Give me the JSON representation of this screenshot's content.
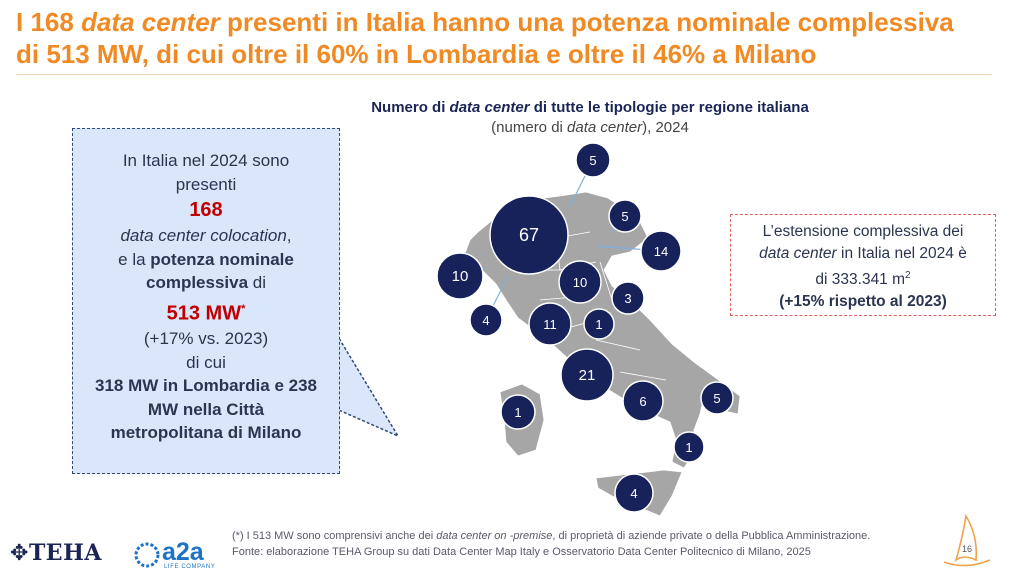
{
  "slide": {
    "title_line1_a": "I 168 ",
    "title_line1_em": "data center",
    "title_line1_b": " presenti in Italia hanno una potenza nominale complessiva",
    "title_line2": "di 513 MW, di cui oltre il 60% in Lombardia e oltre il 46% a Milano",
    "page_number": "16"
  },
  "callout": {
    "line1": "In Italia nel 2024 sono presenti",
    "count": "168",
    "line3": "data center colocation",
    "line3_suffix": ",",
    "line4_a": "e la ",
    "line4_b": "potenza nominale complessiva",
    "line4_c": " di",
    "power": "513 MW",
    "power_mark": "*",
    "growth": "(+17% vs. 2023)",
    "di_cui": "di cui",
    "detail": "318 MW in Lombardia e 238 MW nella Città metropolitana di Milano"
  },
  "map": {
    "title_a": "Numero di ",
    "title_em": "data center",
    "title_b": " di tutte le tipologie per regione italiana",
    "subtitle_a": "(numero di ",
    "subtitle_em": "data center",
    "subtitle_b": "), 2024",
    "land_color": "#a6a6a6",
    "bubble_color": "#17215a",
    "regions": [
      {
        "label": "5"
      },
      {
        "label": "67"
      },
      {
        "label": "5"
      },
      {
        "label": "14"
      },
      {
        "label": "10"
      },
      {
        "label": "10"
      },
      {
        "label": "3"
      },
      {
        "label": "4"
      },
      {
        "label": "11"
      },
      {
        "label": "1"
      },
      {
        "label": "21"
      },
      {
        "label": "6"
      },
      {
        "label": "5"
      },
      {
        "label": "1"
      },
      {
        "label": "1"
      },
      {
        "label": "4"
      }
    ]
  },
  "note": {
    "line1": "L’estensione complessiva dei",
    "line2_em": "data center",
    "line2_b": " in Italia nel 2024 è",
    "line3_a": "di 333.341 m",
    "line3_sup": "2",
    "line4": "(+15% rispetto al 2023)"
  },
  "footer": {
    "note_a": "(*) I 513 MW sono comprensivi anche dei ",
    "note_em": "data center on -premise",
    "note_b": ", di proprietà di aziende  private o della Pubblica Amministrazione.",
    "source": "Fonte: elaborazione TEHA Group su dati Data Center Map Italy e Osservatorio Data Center Politecnico di Milano, 2025",
    "logo_teha": "TEHA",
    "logo_a2a": "a2a",
    "logo_a2a_sub": "LIFE COMPANY"
  }
}
